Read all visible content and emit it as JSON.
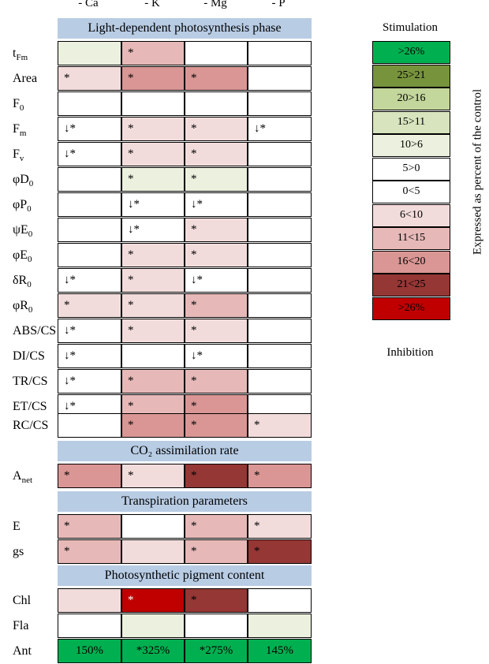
{
  "columns": [
    "- Ca",
    "- K",
    "- Mg",
    "- P"
  ],
  "sections": [
    {
      "title": "Light-dependent photosynthesis phase"
    },
    {
      "title": "CO₂ assimilation rate"
    },
    {
      "title": "Transpiration parameters"
    },
    {
      "title": "Photosynthetic pigment content"
    }
  ],
  "colors": {
    "c1": "#00b050",
    "c2": "#77933c",
    "c3": "#c3d69b",
    "c4": "#d7e4bd",
    "c5": "#ebf1de",
    "c6": "#ffffff",
    "c7": "#ffffff",
    "c8": "#f2dcdb",
    "c9": "#e6b9b8",
    "c10": "#d99694",
    "c11": "#953735",
    "c12": "#c00000"
  },
  "rows": [
    {
      "label": "tFm",
      "cells": [
        {
          "c": "c5",
          "t": ""
        },
        {
          "c": "c9",
          "t": "*"
        },
        {
          "c": "c6",
          "t": ""
        },
        {
          "c": "c6",
          "t": ""
        }
      ]
    },
    {
      "label": "Area",
      "cells": [
        {
          "c": "c8",
          "t": "*"
        },
        {
          "c": "c10",
          "t": "*"
        },
        {
          "c": "c10",
          "t": "*"
        },
        {
          "c": "c6",
          "t": ""
        }
      ]
    },
    {
      "label": "F0",
      "cells": [
        {
          "c": "c6",
          "t": ""
        },
        {
          "c": "c6",
          "t": ""
        },
        {
          "c": "c6",
          "t": ""
        },
        {
          "c": "c6",
          "t": ""
        }
      ]
    },
    {
      "label": "Fm",
      "cells": [
        {
          "c": "c6",
          "t": "↓*"
        },
        {
          "c": "c8",
          "t": "*"
        },
        {
          "c": "c8",
          "t": "*"
        },
        {
          "c": "c6",
          "t": "↓*"
        }
      ]
    },
    {
      "label": "Fv",
      "cells": [
        {
          "c": "c6",
          "t": "↓*"
        },
        {
          "c": "c8",
          "t": "*"
        },
        {
          "c": "c8",
          "t": "*"
        },
        {
          "c": "c6",
          "t": ""
        }
      ]
    },
    {
      "label": "φD0",
      "cells": [
        {
          "c": "c6",
          "t": ""
        },
        {
          "c": "c5",
          "t": "*"
        },
        {
          "c": "c5",
          "t": "*"
        },
        {
          "c": "c6",
          "t": ""
        }
      ]
    },
    {
      "label": "φP0",
      "cells": [
        {
          "c": "c6",
          "t": ""
        },
        {
          "c": "c6",
          "t": "↓*"
        },
        {
          "c": "c6",
          "t": "↓*"
        },
        {
          "c": "c6",
          "t": ""
        }
      ]
    },
    {
      "label": "ψE0",
      "cells": [
        {
          "c": "c6",
          "t": ""
        },
        {
          "c": "c6",
          "t": "↓*"
        },
        {
          "c": "c8",
          "t": "*"
        },
        {
          "c": "c6",
          "t": ""
        }
      ]
    },
    {
      "label": "φE0",
      "cells": [
        {
          "c": "c6",
          "t": ""
        },
        {
          "c": "c8",
          "t": "*"
        },
        {
          "c": "c8",
          "t": "*"
        },
        {
          "c": "c6",
          "t": ""
        }
      ]
    },
    {
      "label": "δR0",
      "cells": [
        {
          "c": "c6",
          "t": "↓*"
        },
        {
          "c": "c8",
          "t": "*"
        },
        {
          "c": "c6",
          "t": "↓*"
        },
        {
          "c": "c6",
          "t": ""
        }
      ]
    },
    {
      "label": "φR0",
      "cells": [
        {
          "c": "c8",
          "t": "*"
        },
        {
          "c": "c8",
          "t": "*"
        },
        {
          "c": "c9",
          "t": "*"
        },
        {
          "c": "c6",
          "t": ""
        }
      ]
    },
    {
      "label": "ABS/CS",
      "cells": [
        {
          "c": "c6",
          "t": "↓*"
        },
        {
          "c": "c8",
          "t": "*"
        },
        {
          "c": "c8",
          "t": "*"
        },
        {
          "c": "c6",
          "t": ""
        }
      ]
    },
    {
      "label": "DI/CS",
      "cells": [
        {
          "c": "c6",
          "t": "↓*"
        },
        {
          "c": "c6",
          "t": ""
        },
        {
          "c": "c6",
          "t": "↓*"
        },
        {
          "c": "c6",
          "t": ""
        }
      ]
    },
    {
      "label": "TR/CS",
      "cells": [
        {
          "c": "c6",
          "t": "↓*"
        },
        {
          "c": "c9",
          "t": "*"
        },
        {
          "c": "c9",
          "t": "*"
        },
        {
          "c": "c6",
          "t": ""
        }
      ]
    },
    {
      "label": "ET/CS",
      "cells": [
        {
          "c": "c6",
          "t": "↓*"
        },
        {
          "c": "c9",
          "t": "*"
        },
        {
          "c": "c10",
          "t": "*"
        },
        {
          "c": "c6",
          "t": ""
        }
      ]
    },
    {
      "label": "RC/CS",
      "cells": [
        {
          "c": "c6",
          "t": ""
        },
        {
          "c": "c10",
          "t": "*"
        },
        {
          "c": "c10",
          "t": "*"
        },
        {
          "c": "c8",
          "t": "*"
        }
      ]
    },
    {
      "label": "Anet",
      "cells": [
        {
          "c": "c10",
          "t": "*"
        },
        {
          "c": "c8",
          "t": "*"
        },
        {
          "c": "c11",
          "t": "*"
        },
        {
          "c": "c10",
          "t": "*"
        }
      ]
    },
    {
      "label": "E",
      "cells": [
        {
          "c": "c9",
          "t": "*"
        },
        {
          "c": "c6",
          "t": ""
        },
        {
          "c": "c9",
          "t": "*"
        },
        {
          "c": "c8",
          "t": "*"
        }
      ]
    },
    {
      "label": "gs",
      "cells": [
        {
          "c": "c9",
          "t": "*"
        },
        {
          "c": "c8",
          "t": ""
        },
        {
          "c": "c9",
          "t": "*"
        },
        {
          "c": "c11",
          "t": "*"
        }
      ]
    },
    {
      "label": "Chl",
      "cells": [
        {
          "c": "c8",
          "t": ""
        },
        {
          "c": "c12",
          "t": "*",
          "white": true
        },
        {
          "c": "c11",
          "t": "*"
        },
        {
          "c": "c6",
          "t": ""
        }
      ]
    },
    {
      "label": "Fla",
      "cells": [
        {
          "c": "c6",
          "t": ""
        },
        {
          "c": "c5",
          "t": ""
        },
        {
          "c": "c6",
          "t": ""
        },
        {
          "c": "c5",
          "t": ""
        }
      ]
    },
    {
      "label": "Ant",
      "cells": [
        {
          "c": "c1",
          "t": "150%"
        },
        {
          "c": "c1",
          "t": "*325%"
        },
        {
          "c": "c1",
          "t": "*275%"
        },
        {
          "c": "c1",
          "t": "145%"
        }
      ]
    }
  ],
  "legend": {
    "top_label": "Stimulation",
    "bottom_label": "Inhibition",
    "side_label": "Expressed as percent of the control",
    "items": [
      {
        "label": ">26%",
        "c": "c1"
      },
      {
        "label": "25>21",
        "c": "c2"
      },
      {
        "label": "20>16",
        "c": "c3"
      },
      {
        "label": "15>11",
        "c": "c4"
      },
      {
        "label": "10>6",
        "c": "c5"
      },
      {
        "label": "5>0",
        "c": "c6"
      },
      {
        "label": "0<5",
        "c": "c7"
      },
      {
        "label": "6<10",
        "c": "c8"
      },
      {
        "label": "11<15",
        "c": "c9"
      },
      {
        "label": "16<20",
        "c": "c10"
      },
      {
        "label": "21<25",
        "c": "c11"
      },
      {
        "label": ">26%",
        "c": "c12"
      }
    ]
  }
}
